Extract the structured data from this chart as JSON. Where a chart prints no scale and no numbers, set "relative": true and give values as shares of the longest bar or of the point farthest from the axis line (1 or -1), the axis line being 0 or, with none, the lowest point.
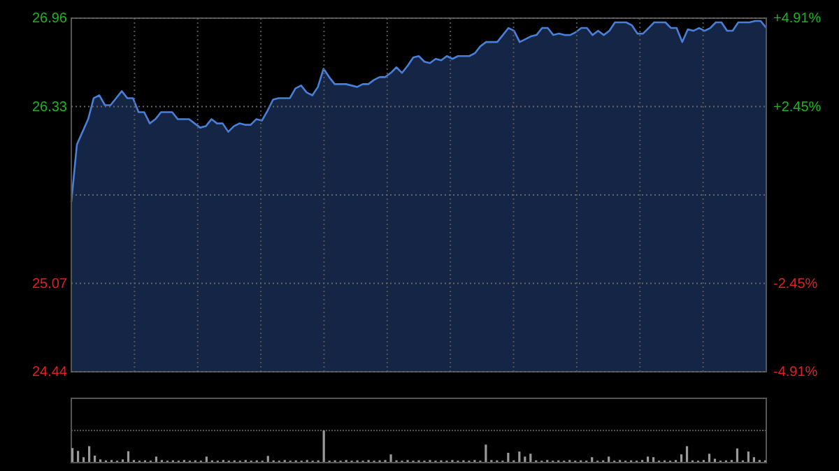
{
  "chart_data": [
    {
      "type": "area",
      "categories": [
        null,
        null,
        null,
        null,
        null,
        null,
        null,
        null,
        null,
        null,
        null,
        null,
        null,
        null,
        null,
        null,
        null,
        null,
        null,
        null,
        null,
        null,
        null,
        null,
        null,
        null,
        null,
        null,
        null,
        null,
        null,
        null,
        null,
        null,
        null,
        null,
        null,
        null,
        null,
        null,
        null,
        null,
        null,
        null,
        null,
        null,
        null,
        null,
        null,
        null,
        null,
        null,
        null,
        null,
        null,
        null,
        null,
        null,
        null,
        null,
        null,
        null,
        null,
        null,
        null,
        null,
        null,
        null,
        null,
        null,
        null,
        null,
        null,
        null,
        null,
        null,
        null,
        null,
        null,
        null,
        null,
        null,
        null,
        null,
        null,
        null,
        null,
        null,
        null,
        null,
        null,
        null,
        null,
        null,
        null,
        null,
        null,
        null,
        null,
        null,
        null,
        null,
        null,
        null,
        null,
        null,
        null,
        null,
        null,
        null,
        null,
        null,
        null,
        null,
        null,
        null,
        null,
        null,
        null,
        null,
        null,
        null,
        null,
        null,
        null
      ],
      "series": [
        {
          "color": "#4a7fd8",
          "values": [
            25.65,
            26.06,
            26.15,
            26.24,
            26.39,
            26.41,
            26.34,
            26.34,
            26.39,
            26.44,
            26.39,
            26.39,
            26.29,
            26.29,
            26.21,
            26.24,
            26.29,
            26.29,
            26.29,
            26.24,
            26.24,
            26.24,
            26.21,
            26.18,
            26.19,
            26.24,
            26.21,
            26.21,
            26.15,
            26.19,
            26.21,
            26.2,
            26.2,
            26.24,
            26.23,
            26.3,
            26.38,
            26.39,
            26.39,
            26.39,
            26.46,
            26.48,
            26.43,
            26.41,
            26.47,
            26.6,
            26.54,
            26.49,
            26.49,
            26.49,
            26.48,
            26.47,
            26.49,
            26.49,
            26.52,
            26.54,
            26.54,
            26.57,
            26.61,
            26.57,
            26.62,
            26.68,
            26.69,
            26.65,
            26.64,
            26.67,
            26.66,
            26.69,
            26.67,
            26.69,
            26.69,
            26.69,
            26.71,
            26.76,
            26.79,
            26.79,
            26.79,
            26.84,
            26.89,
            26.87,
            26.79,
            26.81,
            26.83,
            26.84,
            26.89,
            26.89,
            26.84,
            26.85,
            26.84,
            26.84,
            26.86,
            26.89,
            26.89,
            26.84,
            26.87,
            26.84,
            26.87,
            26.93,
            26.93,
            26.93,
            26.91,
            26.85,
            26.85,
            26.89,
            26.93,
            26.93,
            26.93,
            26.89,
            26.89,
            26.79,
            26.88,
            26.87,
            26.89,
            26.87,
            26.89,
            26.93,
            26.93,
            26.87,
            26.87,
            26.93,
            26.93,
            26.93,
            26.94,
            26.94,
            26.89
          ]
        }
      ],
      "ylim": [
        24.44,
        26.96
      ],
      "yticks": [
        24.44,
        25.07,
        {
          "value": 25.7,
          "label": null
        },
        26.33,
        26.96
      ],
      "y2lim": [
        -4.91,
        4.91
      ],
      "y2ticks": [
        {
          "value": -4.91,
          "label": "-4.91%"
        },
        {
          "value": -2.45,
          "label": "-2.45%"
        },
        {
          "value": 0,
          "label": null
        },
        {
          "value": 2.45,
          "label": "+2.45%"
        },
        {
          "value": 4.91,
          "label": "+4.91%"
        }
      ],
      "grid": true
    },
    {
      "type": "bar",
      "relative": true,
      "categories": [
        null,
        null,
        null,
        null,
        null,
        null,
        null,
        null,
        null,
        null,
        null,
        null,
        null,
        null,
        null,
        null,
        null,
        null,
        null,
        null,
        null,
        null,
        null,
        null,
        null,
        null,
        null,
        null,
        null,
        null,
        null,
        null,
        null,
        null,
        null,
        null,
        null,
        null,
        null,
        null,
        null,
        null,
        null,
        null,
        null,
        null,
        null,
        null,
        null,
        null,
        null,
        null,
        null,
        null,
        null,
        null,
        null,
        null,
        null,
        null,
        null,
        null,
        null,
        null,
        null,
        null,
        null,
        null,
        null,
        null,
        null,
        null,
        null,
        null,
        null,
        null,
        null,
        null,
        null,
        null,
        null,
        null,
        null,
        null,
        null,
        null,
        null,
        null,
        null,
        null,
        null,
        null,
        null,
        null,
        null,
        null,
        null,
        null,
        null,
        null,
        null,
        null,
        null,
        null,
        null,
        null,
        null,
        null,
        null,
        null,
        null,
        null,
        null,
        null,
        null,
        null,
        null,
        null,
        null,
        null,
        null,
        null,
        null,
        null,
        null
      ],
      "series": [
        {
          "color": "#9a9a9a",
          "values": [
            0.44,
            0.35,
            0.15,
            0.5,
            0.2,
            0.08,
            0.05,
            0.06,
            0.04,
            0.08,
            0.34,
            0.06,
            0.04,
            0.05,
            0.04,
            0.17,
            0.06,
            0.04,
            0.05,
            0.04,
            0.06,
            0.04,
            0.05,
            0.04,
            0.17,
            0.05,
            0.04,
            0.06,
            0.04,
            0.05,
            0.04,
            0.06,
            0.04,
            0.05,
            0.04,
            0.19,
            0.05,
            0.04,
            0.06,
            0.04,
            0.05,
            0.04,
            0.06,
            0.04,
            0.05,
            1,
            0.04,
            0.05,
            0.04,
            0.06,
            0.04,
            0.05,
            0.04,
            0.06,
            0.04,
            0.05,
            0.06,
            0.24,
            0.05,
            0.04,
            0.06,
            0.04,
            0.05,
            0.04,
            0.06,
            0.04,
            0.05,
            0.04,
            0.06,
            0.04,
            0.05,
            0.04,
            0.06,
            0.04,
            0.55,
            0.06,
            0.05,
            0.04,
            0.29,
            0.05,
            0.33,
            0.17,
            0.26,
            0.05,
            0.04,
            0.06,
            0.04,
            0.05,
            0.04,
            0.06,
            0.04,
            0.05,
            0.04,
            0.15,
            0.04,
            0.05,
            0.17,
            0.04,
            0.06,
            0.04,
            0.05,
            0.04,
            0.06,
            0.17,
            0.15,
            0.04,
            0.05,
            0.04,
            0.06,
            0.24,
            0.5,
            0.05,
            0.04,
            0.06,
            0.26,
            0.1,
            0.04,
            0.05,
            0.06,
            0.43,
            0.05,
            0.33,
            0.15,
            0.06,
            0.05
          ]
        }
      ],
      "grid": true
    }
  ]
}
